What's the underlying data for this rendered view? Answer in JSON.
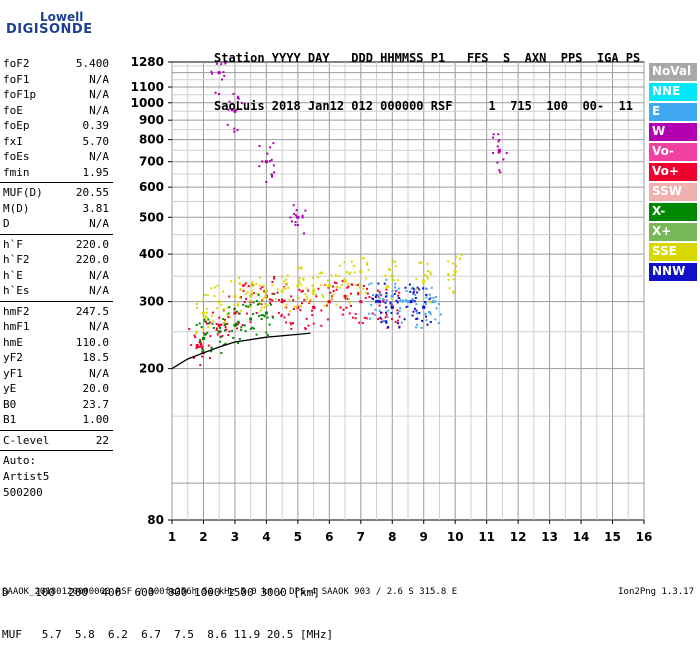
{
  "logo": {
    "line1": "Lowell",
    "line2": "DIGISONDE"
  },
  "header": {
    "line1": "Station YYYY DAY   DDD HHMMSS P1   FFS  S  AXN  PPS  IGA PS",
    "line2": "SaoLuis 2018 Jan12 012 000000 RSF     1  715  100  00-  11"
  },
  "params": {
    "group1": [
      {
        "k": "foF2",
        "v": "5.400"
      },
      {
        "k": "foF1",
        "v": "N/A"
      },
      {
        "k": "foF1p",
        "v": "N/A"
      },
      {
        "k": "foE",
        "v": "N/A"
      },
      {
        "k": "foEp",
        "v": "0.39"
      },
      {
        "k": "fxI",
        "v": "5.70"
      },
      {
        "k": "foEs",
        "v": "N/A"
      },
      {
        "k": "fmin",
        "v": "1.95"
      }
    ],
    "group2": [
      {
        "k": "MUF(D)",
        "v": "20.55"
      },
      {
        "k": "M(D)",
        "v": "3.81"
      },
      {
        "k": "D",
        "v": "N/A"
      }
    ],
    "group3": [
      {
        "k": "h`F",
        "v": "220.0"
      },
      {
        "k": "h`F2",
        "v": "220.0"
      },
      {
        "k": "h`E",
        "v": "N/A"
      },
      {
        "k": "h`Es",
        "v": "N/A"
      }
    ],
    "group4": [
      {
        "k": "hmF2",
        "v": "247.5"
      },
      {
        "k": "hmF1",
        "v": "N/A"
      },
      {
        "k": "hmE",
        "v": "110.0"
      },
      {
        "k": "yF2",
        "v": "18.5"
      },
      {
        "k": "yF1",
        "v": "N/A"
      },
      {
        "k": "yE",
        "v": "20.0"
      },
      {
        "k": "B0",
        "v": "23.7"
      },
      {
        "k": "B1",
        "v": "1.00"
      }
    ],
    "clevel": {
      "k": "C-level",
      "v": "22"
    },
    "auto": [
      "Auto:",
      "Artist5",
      "500200"
    ]
  },
  "legend": [
    {
      "label": "NoVal",
      "color": "#a8a8a8"
    },
    {
      "label": "NNE",
      "color": "#00e8f8"
    },
    {
      "label": "E",
      "color": "#40a8f0"
    },
    {
      "label": "W",
      "color": "#b000b0"
    },
    {
      "label": "Vo-",
      "color": "#f040a0"
    },
    {
      "label": "Vo+",
      "color": "#f00030"
    },
    {
      "label": "SSW",
      "color": "#f0b0b0"
    },
    {
      "label": "X-",
      "color": "#008800"
    },
    {
      "label": "X+",
      "color": "#78b858"
    },
    {
      "label": "SSE",
      "color": "#d8d800"
    },
    {
      "label": "NNW",
      "color": "#1010c8"
    }
  ],
  "table": {
    "line1": "D    100  200  400  600  800 1000 1500 3000 [km]",
    "line2": "MUF   5.7  5.8  6.2  6.7  7.5  8.6 11.9 20.5 [MHz]"
  },
  "footer": "SAAOK_20180120000000.RSF / 300fx256h 50 kHz 5.0 km / DPS-4 SAAOK 903 / 2.6 S 315.8 E",
  "version": "Ion2Png 1.3.17",
  "chart_data": {
    "type": "scatter",
    "title": "",
    "xlabel": "",
    "ylabel": "",
    "xlim": [
      1,
      16
    ],
    "ylim": [
      80,
      1280
    ],
    "yscale": "log",
    "grid": true,
    "x_ticks": [
      1,
      2,
      3,
      4,
      5,
      6,
      7,
      8,
      9,
      10,
      11,
      12,
      13,
      14,
      15,
      16
    ],
    "y_ticks": [
      80,
      200,
      300,
      400,
      500,
      600,
      700,
      800,
      900,
      1000,
      1100,
      1280
    ],
    "legend_placement": "right",
    "trace": {
      "name": "",
      "x": [
        1.0,
        1.5,
        2.0,
        2.5,
        3.0,
        4.0,
        5.0,
        5.4
      ],
      "y": [
        200,
        212,
        220,
        228,
        235,
        242,
        246,
        248
      ]
    },
    "series": [
      {
        "name": "Vo+",
        "x": [
          1.8,
          2.0,
          2.5,
          3.0,
          3.5,
          4.0,
          4.5,
          5.0,
          5.5,
          6.0,
          6.5,
          7.0,
          7.5,
          8.0
        ],
        "y": [
          230,
          240,
          260,
          280,
          300,
          310,
          300,
          290,
          290,
          300,
          310,
          300,
          300,
          290
        ]
      },
      {
        "name": "SSE",
        "x": [
          2.0,
          2.5,
          3.0,
          3.5,
          4.0,
          4.5,
          5.0,
          5.5,
          6.0,
          6.5,
          7.0,
          8.0,
          9.0,
          10.0
        ],
        "y": [
          280,
          300,
          310,
          310,
          320,
          320,
          330,
          320,
          330,
          340,
          360,
          350,
          340,
          360
        ]
      },
      {
        "name": "E",
        "x": [
          7.5,
          8.0,
          8.5,
          9.0,
          9.3
        ],
        "y": [
          300,
          310,
          300,
          290,
          300
        ]
      },
      {
        "name": "NNW",
        "x": [
          7.6,
          8.0,
          8.6,
          9.0
        ],
        "y": [
          300,
          290,
          300,
          290
        ]
      },
      {
        "name": "W",
        "x": [
          2.5,
          3.0,
          4.0,
          5.0,
          11.4
        ],
        "y": [
          1200,
          950,
          700,
          500,
          750
        ]
      },
      {
        "name": "X-",
        "x": [
          2.0,
          2.5,
          3.0,
          3.5,
          4.0
        ],
        "y": [
          240,
          250,
          260,
          270,
          280
        ]
      }
    ]
  }
}
